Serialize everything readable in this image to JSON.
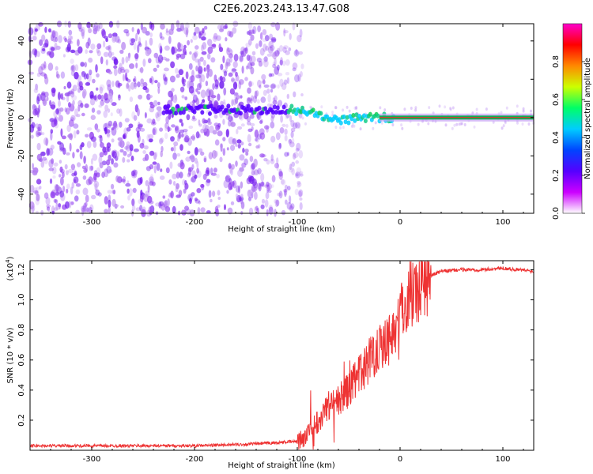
{
  "title": "C2E6.2023.243.13.47.G08",
  "colors": {
    "series": "#ee3333",
    "spectrum_ridge": "#11aa55",
    "spectrum_noise": "#7a22ee"
  },
  "chart_data": [
    {
      "type": "heatmap",
      "title": "C2E6.2023.243.13.47.G08",
      "xlabel": "Height of straight line (km)",
      "ylabel": "Frequency (Hz)",
      "xlim": [
        -360,
        130
      ],
      "ylim": [
        -50,
        49
      ],
      "xticks": [
        -300,
        -200,
        -100,
        0,
        100
      ],
      "yticks": [
        -40,
        -20,
        0,
        20,
        40
      ],
      "colorbar": {
        "label": "Normalized spectral amplitude",
        "range": [
          0,
          1
        ],
        "ticks": [
          0.0,
          0.2,
          0.4,
          0.6,
          0.8
        ],
        "colormap": [
          "#ffffff",
          "#cc00ff",
          "#5500ff",
          "#0044ff",
          "#00ccff",
          "#00ff66",
          "#ccff00",
          "#ff8800",
          "#ff0000",
          "#ff00cc"
        ]
      },
      "ridge": {
        "x": [
          -230,
          -200,
          -150,
          -100,
          -80,
          -60,
          -40,
          -20,
          0,
          50,
          130
        ],
        "y": [
          4,
          4,
          4,
          4,
          2,
          -2,
          0,
          0,
          0,
          0,
          0
        ]
      },
      "noise_x_extent": [
        -360,
        -95
      ],
      "grid": false
    },
    {
      "type": "line",
      "xlabel": "Height of straight line (km)",
      "ylabel": "SNR (10 * v/v)",
      "yscale_label": "(x10",
      "yscale_exp": "4",
      "yscale_close": ")",
      "xlim": [
        -360,
        130
      ],
      "ylim": [
        0,
        1.26
      ],
      "xticks": [
        -300,
        -200,
        -100,
        0,
        100
      ],
      "yticks": [
        0.2,
        0.4,
        0.6,
        0.8,
        1.0,
        1.2
      ],
      "envelope_x": [
        -360,
        -300,
        -200,
        -150,
        -120,
        -100,
        -90,
        -80,
        -70,
        -60,
        -50,
        -40,
        -30,
        -20,
        -10,
        0,
        10,
        20,
        30,
        40,
        60,
        80,
        100,
        130
      ],
      "envelope_y": [
        0.03,
        0.03,
        0.03,
        0.04,
        0.05,
        0.06,
        0.1,
        0.2,
        0.3,
        0.33,
        0.4,
        0.5,
        0.6,
        0.7,
        0.75,
        0.9,
        1.05,
        1.12,
        1.16,
        1.19,
        1.2,
        1.2,
        1.21,
        1.19
      ],
      "grid": false
    }
  ]
}
